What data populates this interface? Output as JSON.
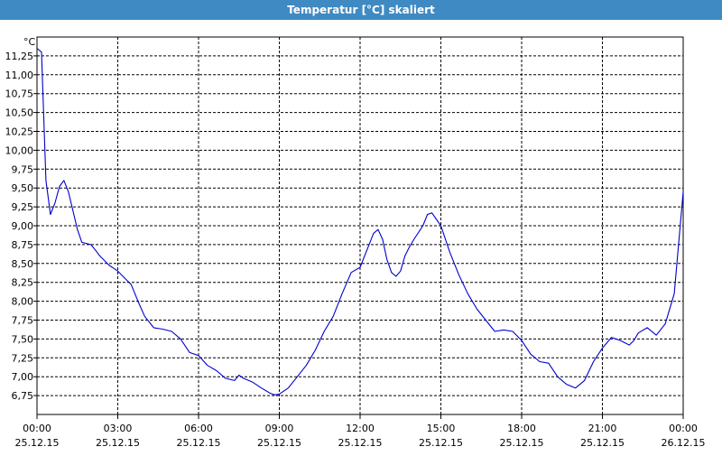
{
  "window": {
    "title": "Temperatur [°C] skaliert"
  },
  "colors": {
    "titlebar": "#3f8ac3",
    "line": "#0000cc",
    "grid": "#000000",
    "background": "#ffffff"
  },
  "chart_data": {
    "type": "line",
    "title": "Temperatur [°C] skaliert",
    "ylabel": "°C",
    "xlabel": "",
    "ylim": [
      6.5,
      11.5
    ],
    "xlim": [
      "25.12.15 00:00",
      "26.12.15 00:00"
    ],
    "grid": true,
    "legend": "none",
    "y_ticks": [
      "6,75",
      "7,00",
      "7,25",
      "7,50",
      "7,75",
      "8,00",
      "8,25",
      "8,50",
      "8,75",
      "9,00",
      "9,25",
      "9,50",
      "9,75",
      "10,00",
      "10,25",
      "10,50",
      "10,75",
      "11,00",
      "11,25"
    ],
    "x_ticks": [
      {
        "time": "00:00",
        "date": "25.12.15"
      },
      {
        "time": "03:00",
        "date": "25.12.15"
      },
      {
        "time": "06:00",
        "date": "25.12.15"
      },
      {
        "time": "09:00",
        "date": "25.12.15"
      },
      {
        "time": "12:00",
        "date": "25.12.15"
      },
      {
        "time": "15:00",
        "date": "25.12.15"
      },
      {
        "time": "18:00",
        "date": "25.12.15"
      },
      {
        "time": "21:00",
        "date": "25.12.15"
      },
      {
        "time": "00:00",
        "date": "26.12.15"
      }
    ],
    "series": [
      {
        "x": [
          "25.12.15 00:00",
          "25.12.15 00:10",
          "25.12.15 00:20",
          "25.12.15 00:30",
          "25.12.15 00:40",
          "25.12.15 00:50",
          "25.12.15 01:00",
          "25.12.15 01:10",
          "25.12.15 01:20",
          "25.12.15 01:30",
          "25.12.15 01:40",
          "25.12.15 02:00",
          "25.12.15 02:10",
          "25.12.15 02:20",
          "25.12.15 02:40",
          "25.12.15 03:00",
          "25.12.15 03:20",
          "25.12.15 03:30",
          "25.12.15 03:45",
          "25.12.15 04:00",
          "25.12.15 04:20",
          "25.12.15 04:40",
          "25.12.15 05:00",
          "25.12.15 05:20",
          "25.12.15 05:40",
          "25.12.15 06:00",
          "25.12.15 06:20",
          "25.12.15 06:40",
          "25.12.15 07:00",
          "25.12.15 07:20",
          "25.12.15 07:30",
          "25.12.15 07:40",
          "25.12.15 08:00",
          "25.12.15 08:20",
          "25.12.15 08:40",
          "25.12.15 08:50",
          "25.12.15 09:00",
          "25.12.15 09:20",
          "25.12.15 09:40",
          "25.12.15 10:00",
          "25.12.15 10:20",
          "25.12.15 10:40",
          "25.12.15 11:00",
          "25.12.15 11:20",
          "25.12.15 11:40",
          "25.12.15 12:00",
          "25.12.15 12:10",
          "25.12.15 12:30",
          "25.12.15 12:40",
          "25.12.15 12:50",
          "25.12.15 13:00",
          "25.12.15 13:10",
          "25.12.15 13:20",
          "25.12.15 13:30",
          "25.12.15 13:40",
          "25.12.15 13:50",
          "25.12.15 14:00",
          "25.12.15 14:20",
          "25.12.15 14:30",
          "25.12.15 14:40",
          "25.12.15 15:00",
          "25.12.15 15:20",
          "25.12.15 15:40",
          "25.12.15 16:00",
          "25.12.15 16:20",
          "25.12.15 16:40",
          "25.12.15 17:00",
          "25.12.15 17:20",
          "25.12.15 17:40",
          "25.12.15 18:00",
          "25.12.15 18:20",
          "25.12.15 18:40",
          "25.12.15 19:00",
          "25.12.15 19:20",
          "25.12.15 19:40",
          "25.12.15 20:00",
          "25.12.15 20:20",
          "25.12.15 20:40",
          "25.12.15 21:00",
          "25.12.15 21:10",
          "25.12.15 21:20",
          "25.12.15 21:40",
          "25.12.15 22:00",
          "25.12.15 22:10",
          "25.12.15 22:20",
          "25.12.15 22:40",
          "25.12.15 23:00",
          "25.12.15 23:20",
          "25.12.15 23:40",
          "26.12.15 00:00"
        ],
        "y": [
          11.35,
          11.3,
          9.6,
          9.15,
          9.3,
          9.52,
          9.6,
          9.45,
          9.2,
          8.95,
          8.78,
          8.75,
          8.68,
          8.6,
          8.48,
          8.4,
          8.28,
          8.22,
          8.0,
          7.8,
          7.65,
          7.63,
          7.6,
          7.5,
          7.32,
          7.28,
          7.15,
          7.08,
          6.98,
          6.95,
          7.02,
          6.98,
          6.93,
          6.85,
          6.78,
          6.76,
          6.77,
          6.85,
          7.0,
          7.15,
          7.35,
          7.6,
          7.8,
          8.1,
          8.38,
          8.45,
          8.6,
          8.9,
          8.95,
          8.82,
          8.55,
          8.38,
          8.33,
          8.4,
          8.6,
          8.72,
          8.82,
          9.0,
          9.15,
          9.17,
          9.0,
          8.65,
          8.35,
          8.1,
          7.9,
          7.75,
          7.6,
          7.62,
          7.6,
          7.48,
          7.3,
          7.2,
          7.18,
          7.0,
          6.9,
          6.85,
          6.95,
          7.2,
          7.38,
          7.45,
          7.52,
          7.48,
          7.42,
          7.48,
          7.58,
          7.65,
          7.55,
          7.7,
          8.1,
          9.45
        ]
      }
    ]
  }
}
